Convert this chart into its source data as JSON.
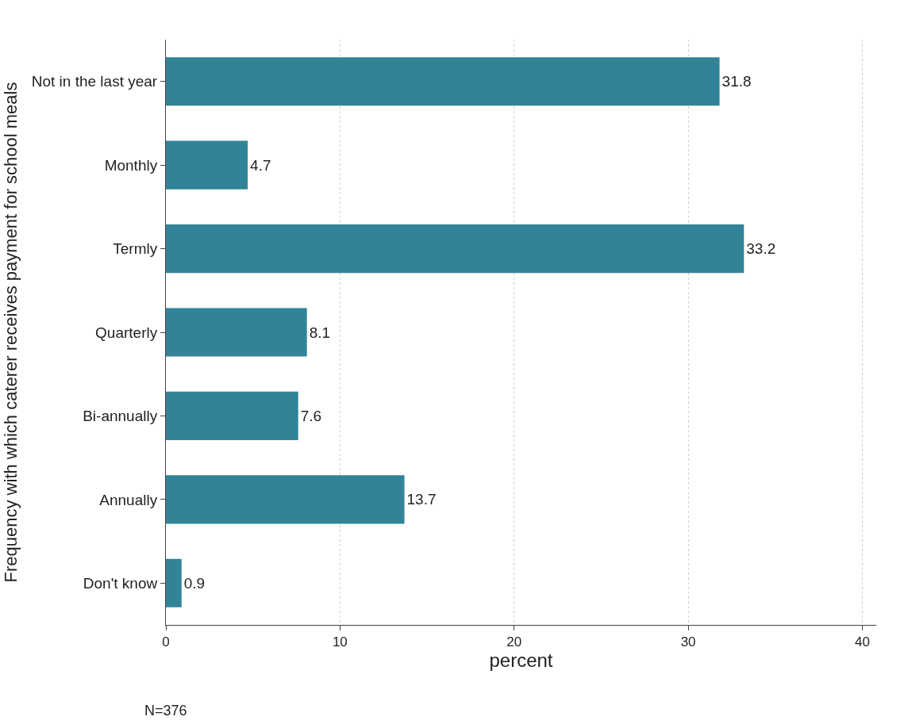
{
  "chart_data": {
    "type": "bar",
    "orientation": "horizontal",
    "categories": [
      "Not in the last year",
      "Monthly",
      "Termly",
      "Quarterly",
      "Bi-annually",
      "Annually",
      "Don't know"
    ],
    "values": [
      31.8,
      4.7,
      33.2,
      8.1,
      7.6,
      13.7,
      0.9
    ],
    "color": "#318497",
    "xlabel": "percent",
    "ylabel": "Frequency with which caterer receives payment for school meals",
    "xlim": [
      0,
      40.8
    ],
    "xticks": [
      0,
      10,
      20,
      30,
      40
    ],
    "grid": "x",
    "data_labels": true,
    "legend": false,
    "annotations": [
      "N=376"
    ]
  }
}
